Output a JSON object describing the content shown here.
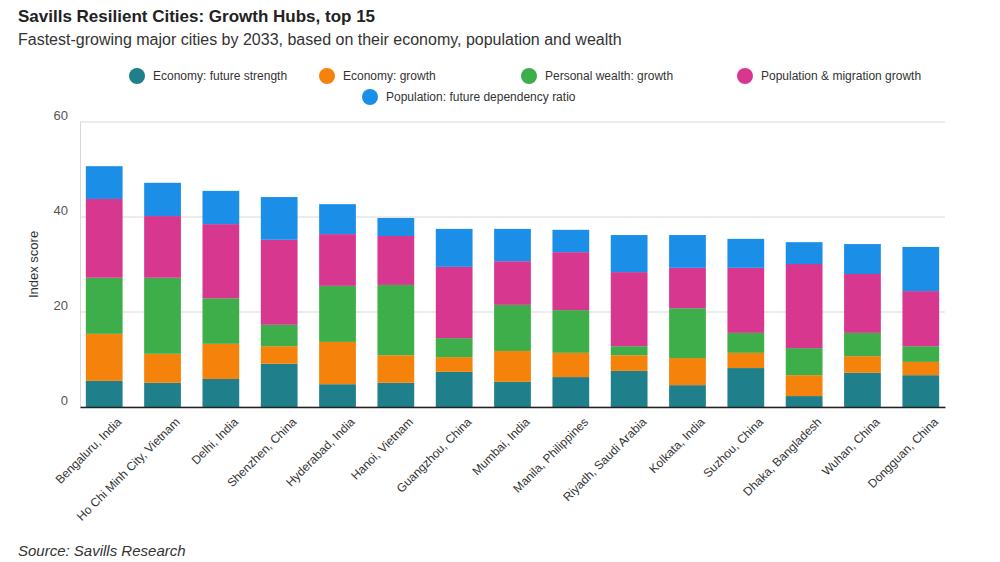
{
  "chart_data": {
    "type": "bar",
    "stacked": true,
    "title": "Savills Resilient Cities: Growth Hubs, top 15",
    "subtitle": "Fastest-growing major cities by 2033, based on their economy, population and wealth",
    "y_label": "Index score",
    "source": "Source: Savills Research",
    "categories": [
      "Bengaluru, India",
      "Ho Chi Minh City, Vietnam",
      "Delhi, India",
      "Shenzhen, China",
      "Hyderabad, India",
      "Hanoi, Vietnam",
      "Guangzhou, China",
      "Mumbai, India",
      "Manila, Philippines",
      "Riyadh, Saudi Arabia",
      "Kolkata, India",
      "Suzhou, China",
      "Dhaka, Bangladesh",
      "Wuhan, China",
      "Dongguan, China"
    ],
    "series": [
      {
        "name": "Economy: future strength",
        "color": "#1f7f8a",
        "values": [
          5.5,
          5.1,
          5.9,
          9.1,
          4.8,
          5.1,
          7.4,
          5.3,
          6.3,
          7.6,
          4.6,
          8.2,
          2.3,
          7.2,
          6.7
        ]
      },
      {
        "name": "Economy: growth",
        "color": "#f5820a",
        "values": [
          9.9,
          6.1,
          7.4,
          3.7,
          8.9,
          5.8,
          3.1,
          6.5,
          5.1,
          3.3,
          5.7,
          3.2,
          4.4,
          3.5,
          2.8
        ]
      },
      {
        "name": "Personal wealth: growth",
        "color": "#3dae49",
        "values": [
          11.8,
          16.0,
          9.6,
          4.5,
          11.8,
          14.8,
          4.0,
          9.7,
          9.0,
          1.9,
          10.5,
          4.2,
          5.7,
          4.9,
          3.3
        ]
      },
      {
        "name": "Population & migration growth",
        "color": "#d8378f",
        "values": [
          16.6,
          13.0,
          15.6,
          17.9,
          10.9,
          10.3,
          15.0,
          9.2,
          12.2,
          15.6,
          8.5,
          13.7,
          17.7,
          12.4,
          11.6
        ]
      },
      {
        "name": "Population: future dependency ratio",
        "color": "#1b8ee8",
        "values": [
          6.9,
          7.0,
          7.0,
          9.0,
          6.3,
          3.8,
          8.0,
          6.8,
          4.7,
          7.8,
          6.9,
          6.1,
          4.6,
          6.3,
          9.3
        ]
      }
    ],
    "ylim": [
      0,
      60
    ],
    "yticks": [
      0,
      20,
      40,
      60
    ],
    "grid": true,
    "legend": "top"
  }
}
